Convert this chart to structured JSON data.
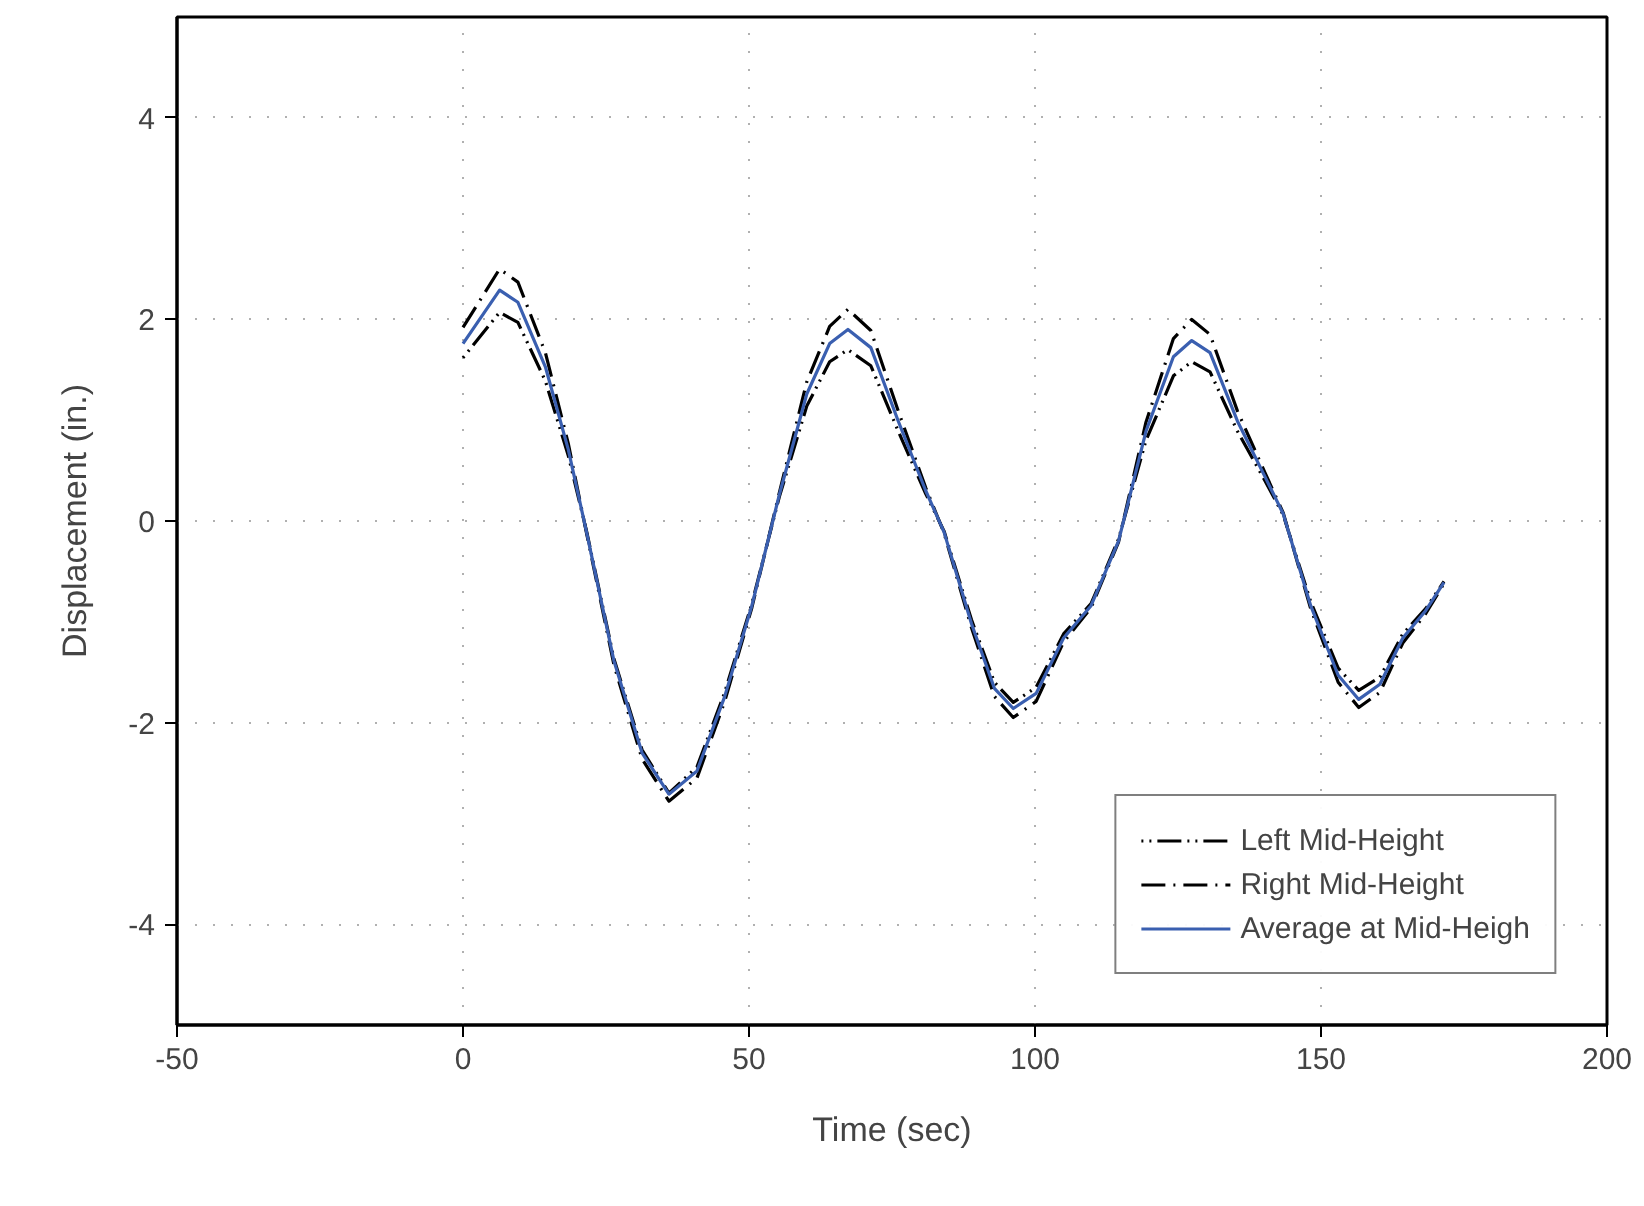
{
  "chart_data": {
    "type": "line",
    "xlabel": "Time (sec)",
    "ylabel": "Displacement (in.)",
    "xlim": [
      -50,
      200
    ],
    "xticks": [
      -50,
      0,
      50,
      100,
      150,
      200
    ],
    "ylim": [
      -5,
      5
    ],
    "yticks": [
      -4,
      -2,
      0,
      2,
      4
    ],
    "grid": true,
    "legend": "bottom right",
    "marker": "none",
    "x": [
      0,
      6.4,
      9.6,
      14.4,
      18.4,
      21.6,
      26.4,
      31.3,
      36,
      40.9,
      45.7,
      50.5,
      55.3,
      60.1,
      64.1,
      67.3,
      71.3,
      76.1,
      80.9,
      84.1,
      88.9,
      92.9,
      96.2,
      100.2,
      105,
      109.8,
      114.6,
      119.4,
      124.2,
      127.4,
      130.6,
      135.4,
      140.2,
      143.4,
      148.2,
      153,
      156.6,
      160.3,
      164.3,
      168.3,
      171.5
    ],
    "series": [
      {
        "name": "Left Mid-Height",
        "color": "#000000",
        "line_style": "dotted",
        "values": [
          1.62,
          2.07,
          1.97,
          1.39,
          0.65,
          -0.1,
          -1.37,
          -2.27,
          -2.7,
          -2.44,
          -1.71,
          -0.82,
          0.24,
          1.14,
          1.58,
          1.7,
          1.54,
          0.89,
          0.27,
          -0.1,
          -0.98,
          -1.6,
          -1.8,
          -1.65,
          -1.12,
          -0.82,
          -0.18,
          0.8,
          1.44,
          1.58,
          1.48,
          0.89,
          0.4,
          0.06,
          -0.8,
          -1.46,
          -1.68,
          -1.55,
          -1.12,
          -0.87,
          -0.6
        ]
      },
      {
        "name": "Right Mid-Height",
        "color": "#000000",
        "line_style": "dashed",
        "values": [
          1.92,
          2.5,
          2.37,
          1.67,
          0.77,
          -0.12,
          -1.43,
          -2.36,
          -2.78,
          -2.55,
          -1.8,
          -0.86,
          0.28,
          1.38,
          1.93,
          2.1,
          1.89,
          1.09,
          0.33,
          -0.12,
          -1.06,
          -1.74,
          -1.95,
          -1.79,
          -1.2,
          -0.86,
          -0.21,
          0.98,
          1.81,
          2.0,
          1.85,
          1.09,
          0.48,
          0.08,
          -0.87,
          -1.6,
          -1.85,
          -1.7,
          -1.21,
          -0.92,
          -0.62
        ]
      },
      {
        "name": "Average at Mid-Heigh",
        "color": "#3a5fb0",
        "line_style": "solid",
        "values": [
          1.76,
          2.29,
          2.17,
          1.53,
          0.71,
          -0.11,
          -1.39,
          -2.3,
          -2.71,
          -2.48,
          -1.75,
          -0.84,
          0.26,
          1.26,
          1.76,
          1.9,
          1.72,
          0.99,
          0.3,
          -0.11,
          -1.02,
          -1.66,
          -1.86,
          -1.71,
          -1.16,
          -0.84,
          -0.2,
          0.89,
          1.63,
          1.79,
          1.67,
          0.99,
          0.44,
          0.07,
          -0.84,
          -1.53,
          -1.77,
          -1.62,
          -1.16,
          -0.89,
          -0.61
        ]
      }
    ]
  }
}
